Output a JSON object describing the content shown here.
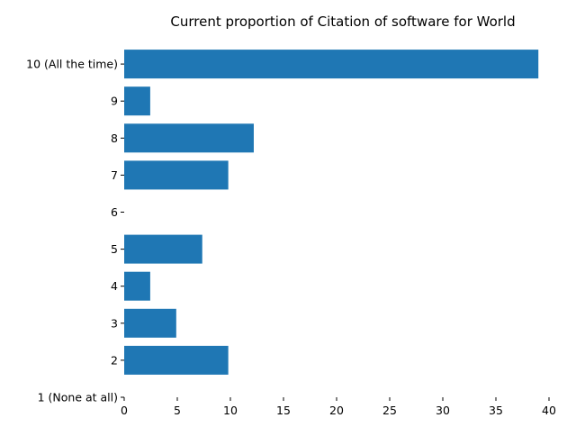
{
  "chart_data": {
    "type": "bar",
    "orientation": "horizontal",
    "title": "Current proportion of Citation of software for World",
    "xlabel": "",
    "ylabel": "",
    "categories": [
      "1 (None at all)",
      "2",
      "3",
      "4",
      "5",
      "6",
      "7",
      "8",
      "9",
      "10 (All the time)"
    ],
    "values": [
      0,
      9.8,
      4.9,
      2.45,
      7.35,
      0,
      9.8,
      12.2,
      2.45,
      39.0
    ],
    "xlim": [
      0,
      40
    ],
    "xticks": [
      0,
      5,
      10,
      15,
      20,
      25,
      30,
      35,
      40
    ],
    "bar_color": "#1f77b4",
    "grid": false,
    "legend": "none"
  }
}
